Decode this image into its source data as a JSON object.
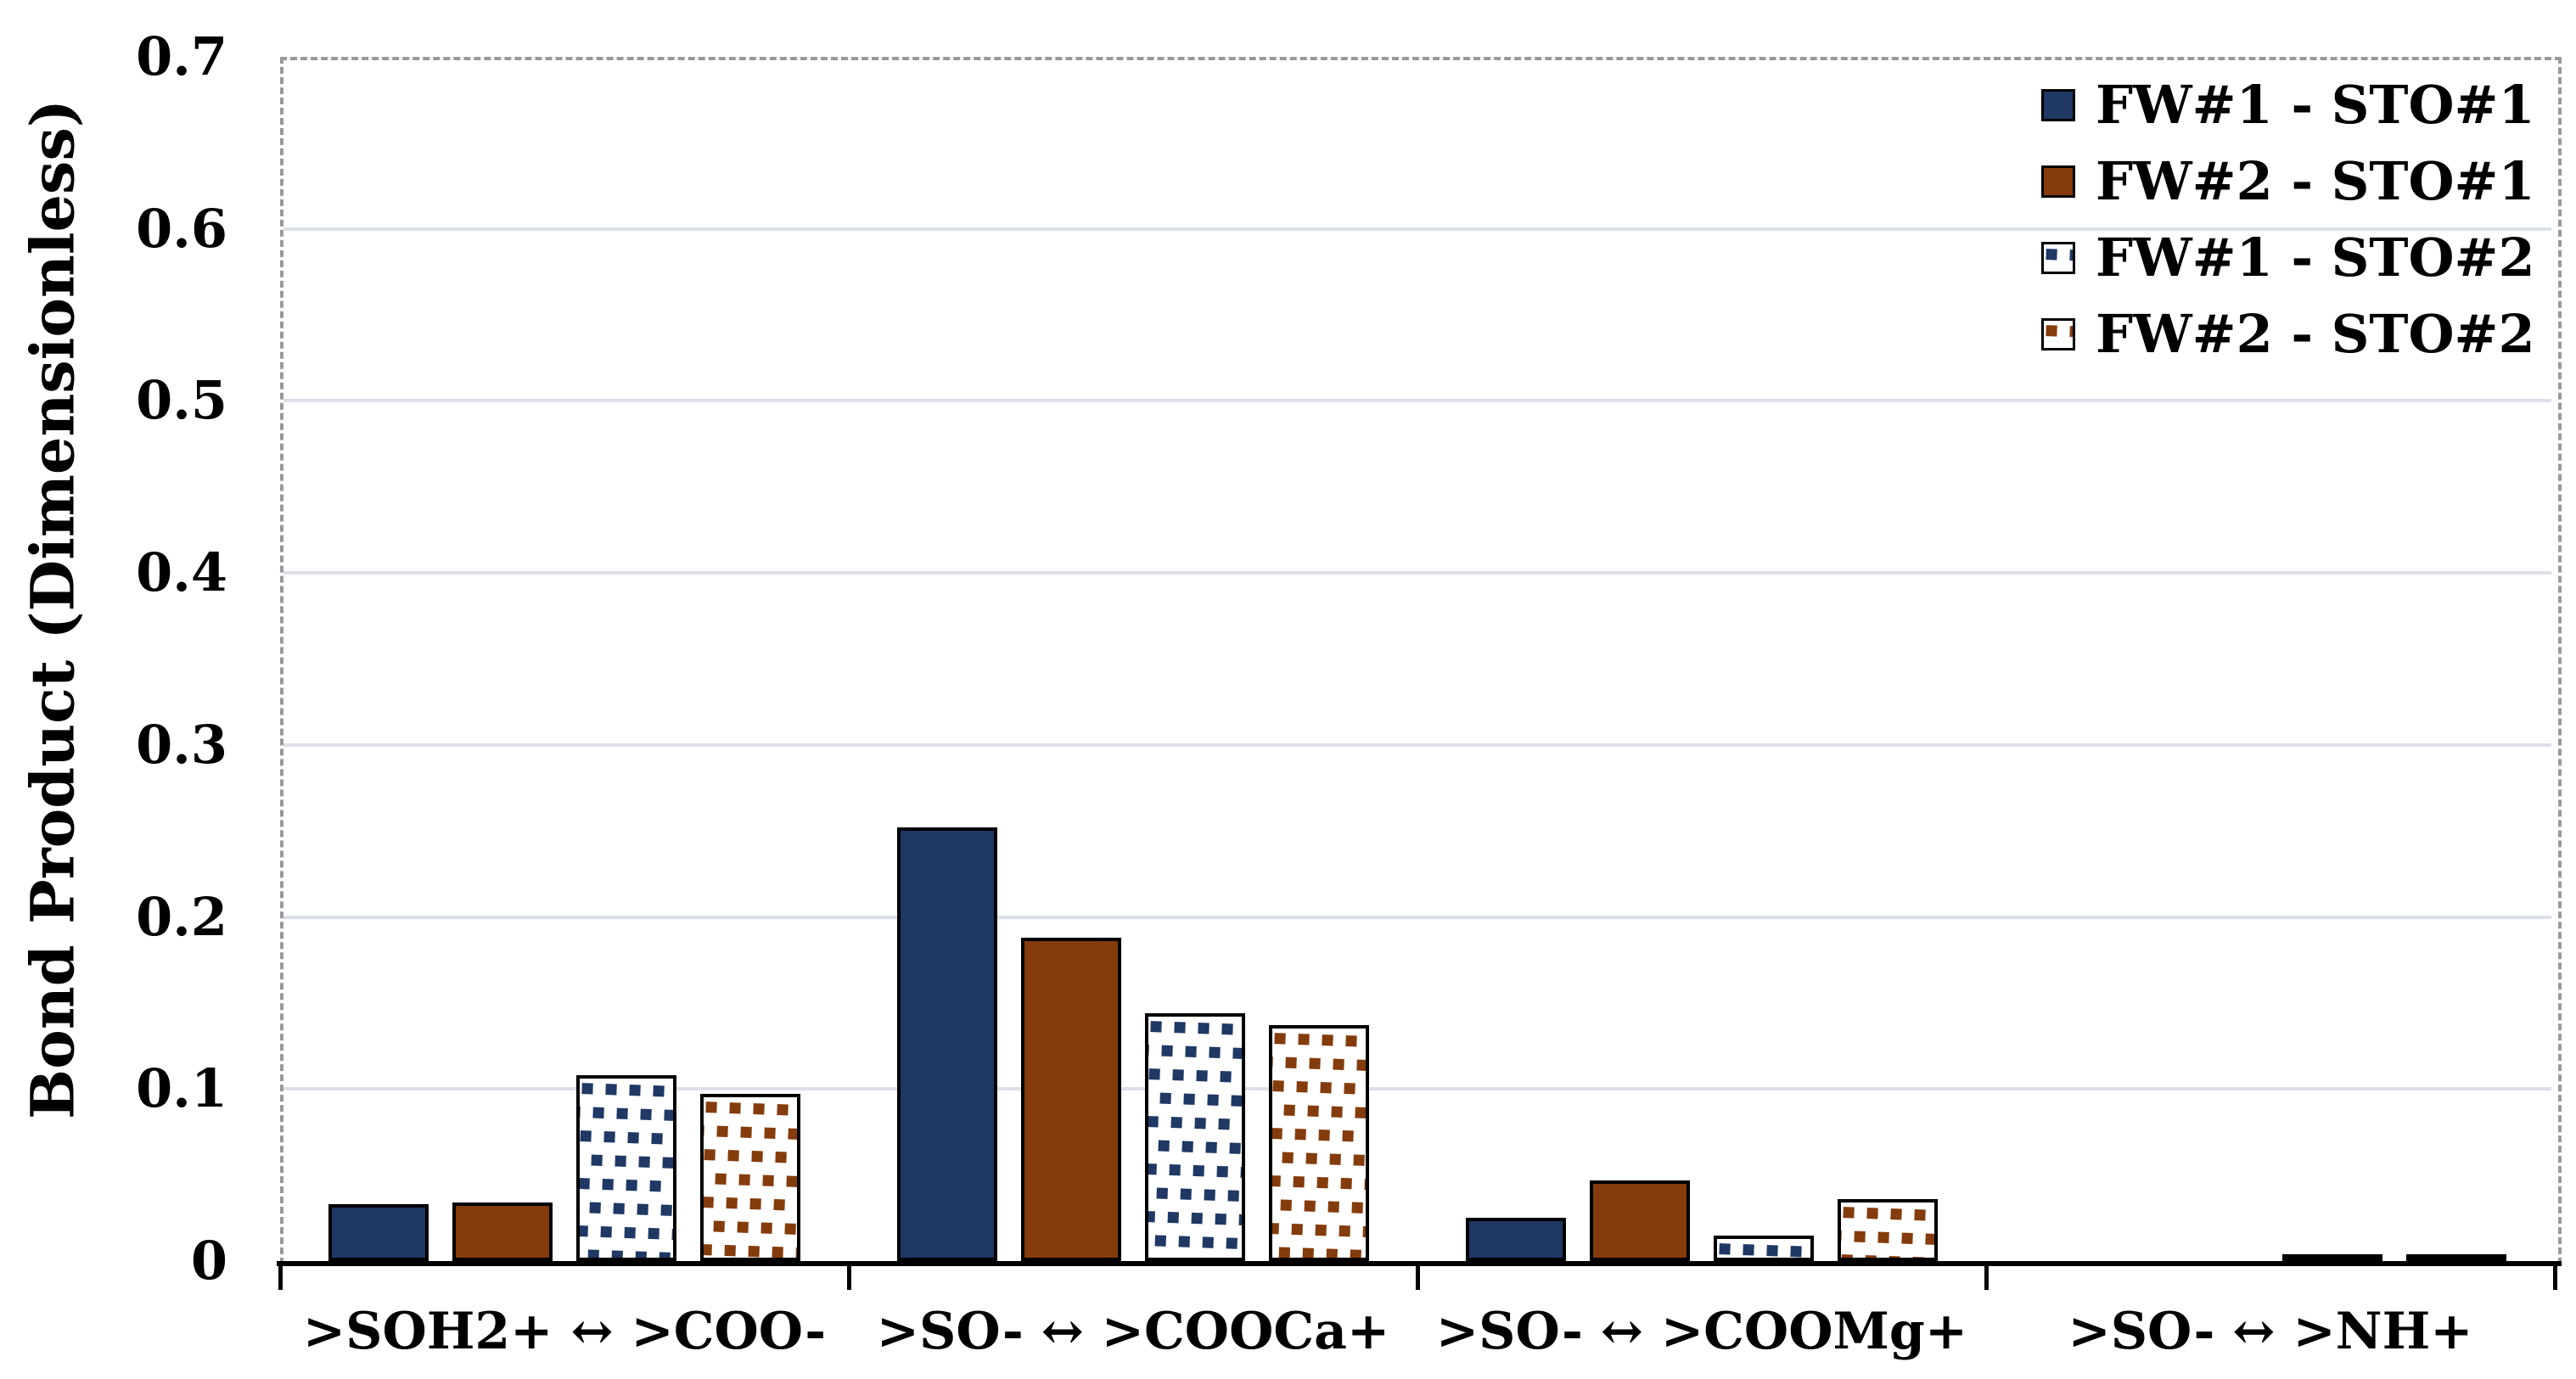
{
  "chart_data": {
    "type": "bar",
    "title": "",
    "xlabel": "",
    "ylabel": "Bond Product (Dimensionless)",
    "ylim": [
      0,
      0.7
    ],
    "ytick_step": 0.1,
    "yticks": [
      "0",
      "0.1",
      "0.2",
      "0.3",
      "0.4",
      "0.5",
      "0.6",
      "0.7"
    ],
    "grid": true,
    "legend_position": "top-right-inside",
    "categories": [
      ">SOH2+ ↔ >COO-",
      ">SO- ↔ >COOCa+",
      ">SO- ↔ >COOMg+",
      ">SO- ↔ >NH+"
    ],
    "series": [
      {
        "name": "FW#1 - STO#1",
        "fill": "solid",
        "color": "#1F3864",
        "values": [
          0.033,
          0.252,
          0.025,
          0.0
        ]
      },
      {
        "name": "FW#2 - STO#1",
        "fill": "solid",
        "color": "#843C0C",
        "values": [
          0.034,
          0.188,
          0.047,
          0.0
        ]
      },
      {
        "name": "FW#1 - STO#2",
        "fill": "pattern",
        "color": "#1F3864",
        "values": [
          0.108,
          0.144,
          0.015,
          0.002
        ]
      },
      {
        "name": "FW#2 - STO#2",
        "fill": "pattern",
        "color": "#843C0C",
        "values": [
          0.097,
          0.137,
          0.036,
          0.002
        ]
      }
    ],
    "colors": {
      "plot_border_dashed": "#999999",
      "axis_line": "#000000",
      "gridline": "#DCE0E8",
      "bar_outline": "#000000",
      "pattern_background": "#FFFFFF"
    }
  }
}
